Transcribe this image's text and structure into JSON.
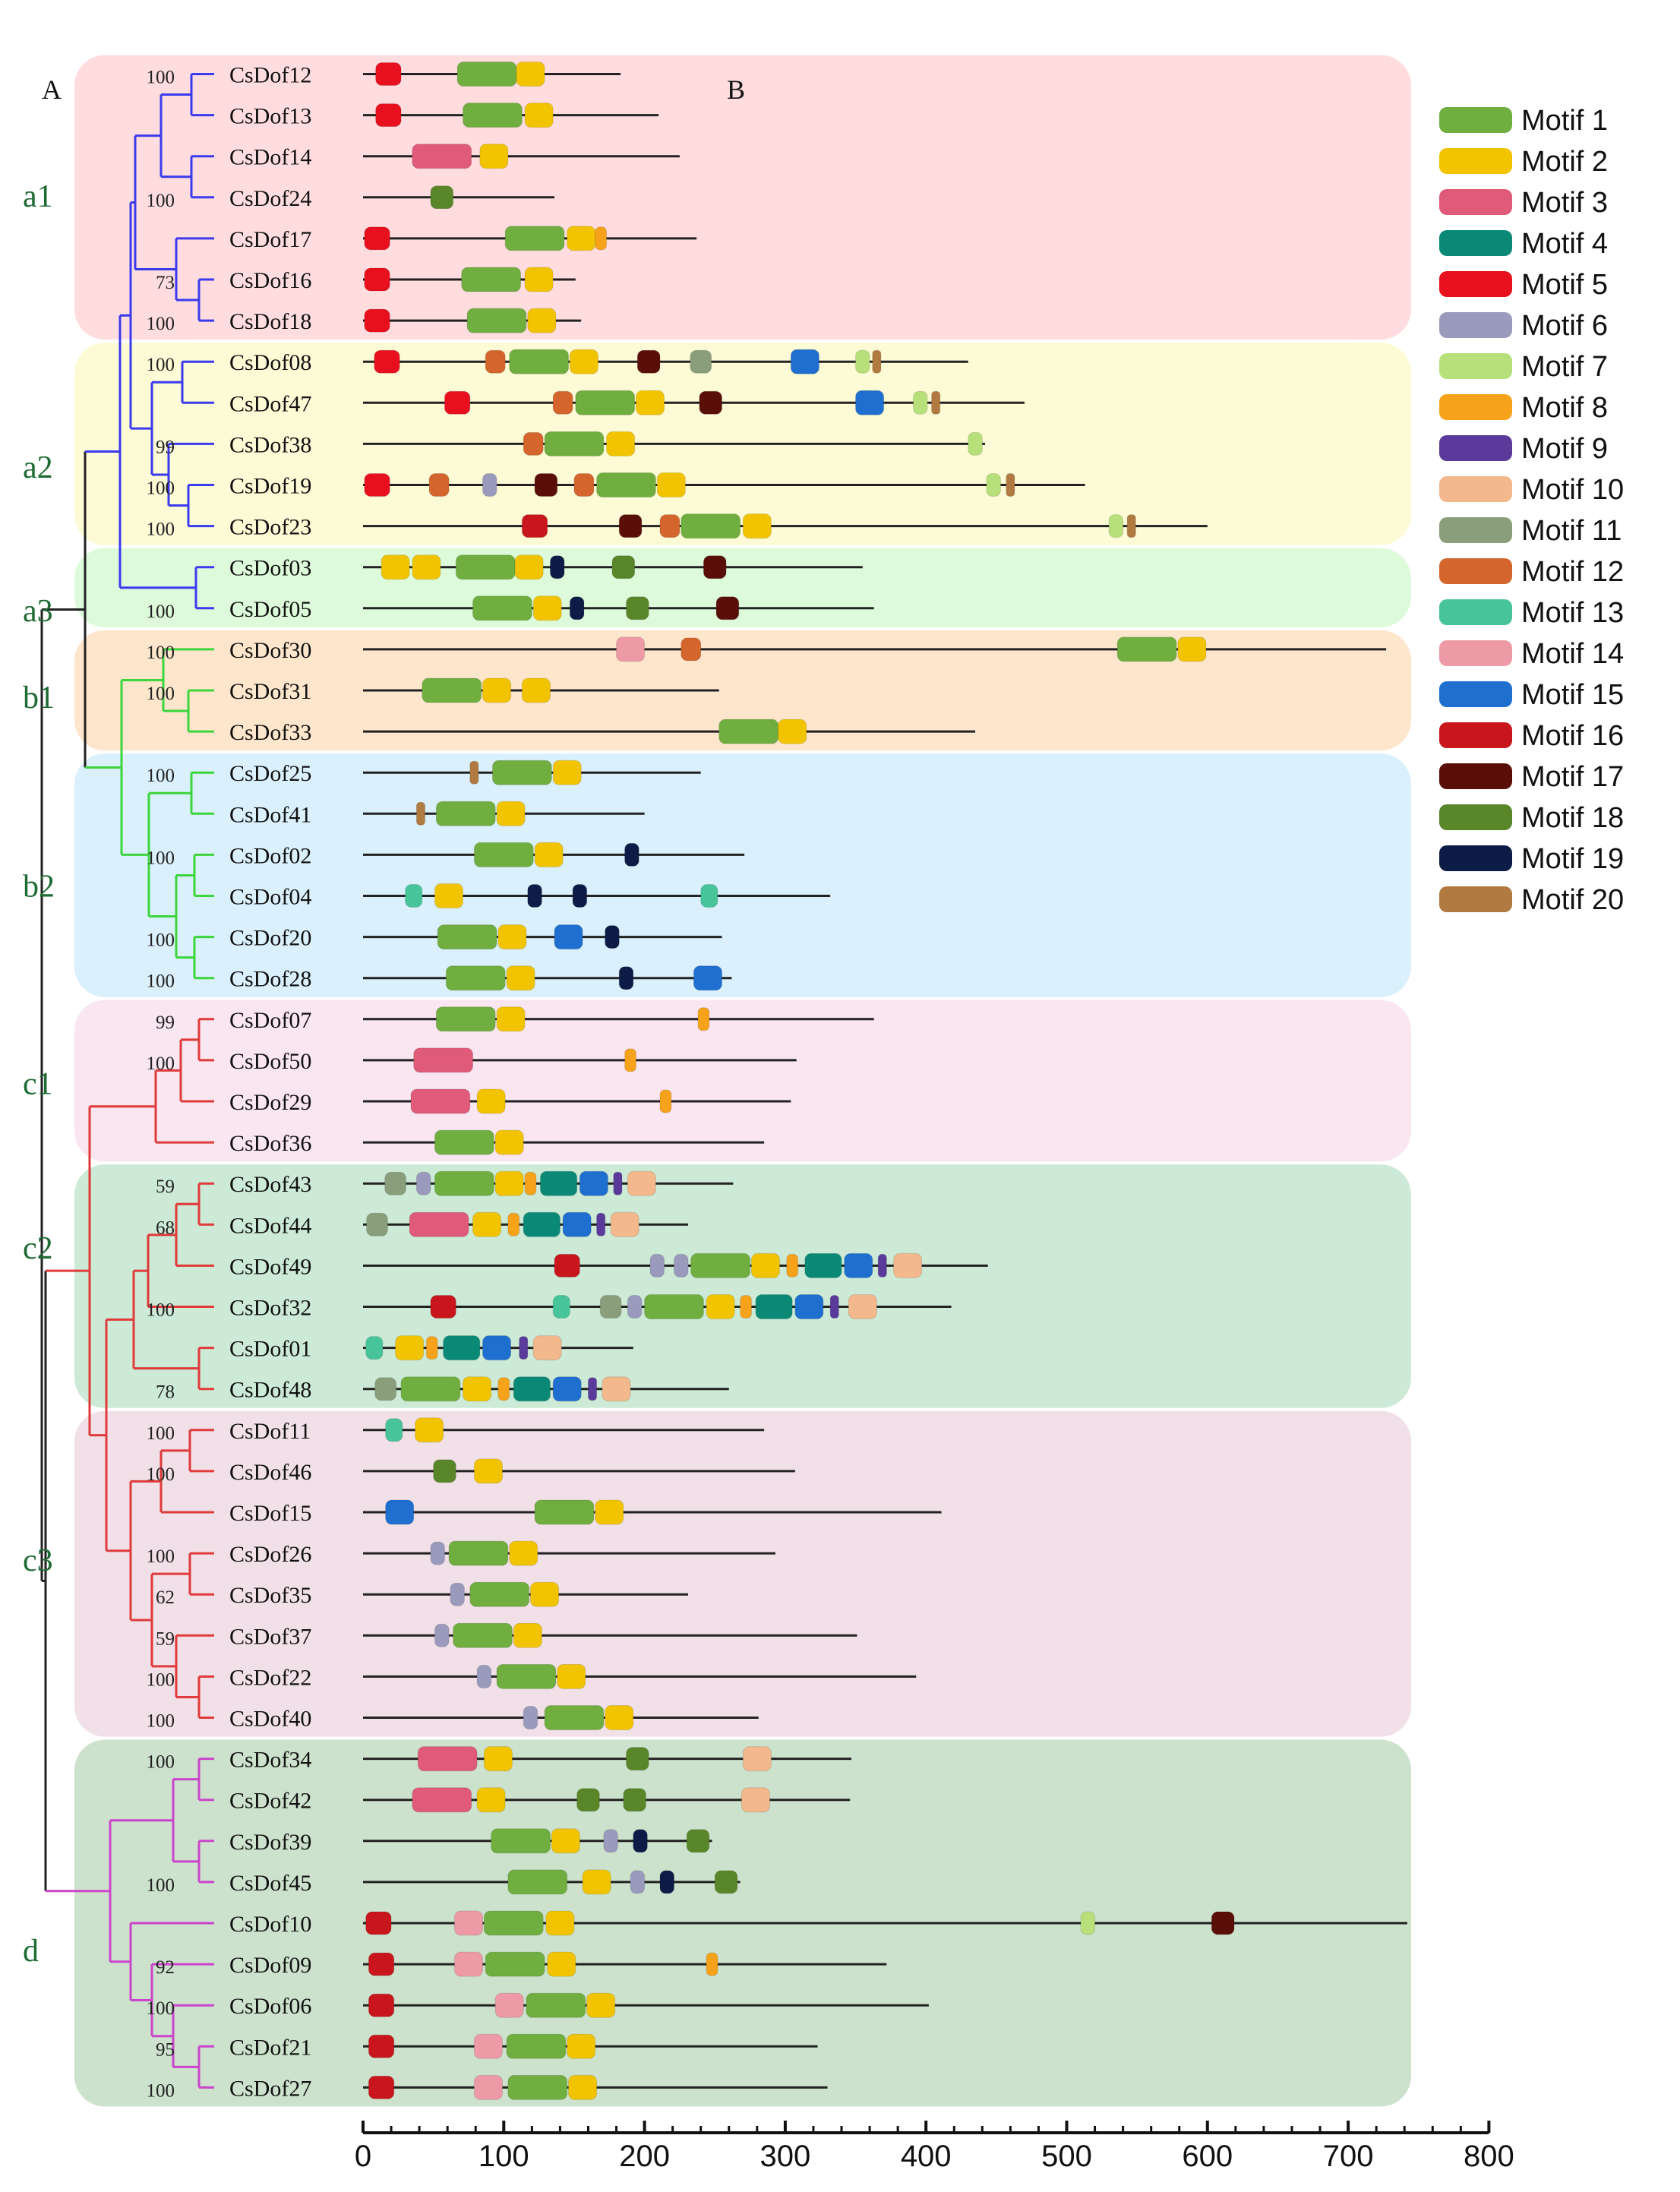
{
  "panel_labels": [
    "A",
    "B"
  ],
  "clades": [
    "a1",
    "a2",
    "a3",
    "b1",
    "b2",
    "c1",
    "c2",
    "c3",
    "d"
  ],
  "proteins": [
    {
      "name": "CsDof12",
      "length": 183,
      "boot": "100",
      "motifs": [
        [
          5,
          18
        ],
        [
          1,
          88
        ],
        [
          2,
          119
        ]
      ]
    },
    {
      "name": "CsDof13",
      "length": 210,
      "boot": "",
      "motifs": [
        [
          5,
          18
        ],
        [
          1,
          92
        ],
        [
          2,
          125
        ]
      ]
    },
    {
      "name": "CsDof14",
      "length": 225,
      "boot": "",
      "motifs": [
        [
          3,
          56
        ],
        [
          2,
          93
        ]
      ]
    },
    {
      "name": "CsDof24",
      "length": 136,
      "boot": "100",
      "motifs": [
        [
          18,
          56
        ]
      ]
    },
    {
      "name": "CsDof17",
      "length": 237,
      "boot": "",
      "motifs": [
        [
          5,
          10
        ],
        [
          1,
          122
        ],
        [
          2,
          155
        ],
        [
          8,
          169
        ]
      ]
    },
    {
      "name": "CsDof16",
      "length": 151,
      "boot": "73",
      "motifs": [
        [
          5,
          10
        ],
        [
          1,
          91
        ],
        [
          2,
          125
        ]
      ]
    },
    {
      "name": "CsDof18",
      "length": 155,
      "boot": "100",
      "motifs": [
        [
          5,
          10
        ],
        [
          1,
          95
        ],
        [
          2,
          127
        ]
      ]
    },
    {
      "name": "CsDof08",
      "length": 430,
      "boot": "100",
      "motifs": [
        [
          5,
          17
        ],
        [
          12,
          94
        ],
        [
          1,
          125
        ],
        [
          2,
          157
        ],
        [
          17,
          203
        ],
        [
          11,
          240
        ],
        [
          15,
          314
        ],
        [
          7,
          355
        ],
        [
          20,
          365
        ]
      ]
    },
    {
      "name": "CsDof47",
      "length": 470,
      "boot": "",
      "motifs": [
        [
          5,
          67
        ],
        [
          12,
          142
        ],
        [
          1,
          172
        ],
        [
          2,
          204
        ],
        [
          17,
          247
        ],
        [
          15,
          360
        ],
        [
          7,
          396
        ],
        [
          20,
          407
        ]
      ]
    },
    {
      "name": "CsDof38",
      "length": 442,
      "boot": "99",
      "motifs": [
        [
          12,
          121
        ],
        [
          1,
          150
        ],
        [
          2,
          183
        ],
        [
          7,
          435
        ]
      ]
    },
    {
      "name": "CsDof19",
      "length": 513,
      "boot": "100",
      "motifs": [
        [
          5,
          10
        ],
        [
          12,
          54
        ],
        [
          6,
          90
        ],
        [
          17,
          130
        ],
        [
          12,
          157
        ],
        [
          1,
          187
        ],
        [
          2,
          219
        ],
        [
          7,
          448
        ],
        [
          20,
          460
        ]
      ]
    },
    {
      "name": "CsDof23",
      "length": 600,
      "boot": "100",
      "motifs": [
        [
          16,
          122
        ],
        [
          17,
          190
        ],
        [
          12,
          218
        ],
        [
          1,
          247
        ],
        [
          2,
          280
        ],
        [
          7,
          535
        ],
        [
          20,
          546
        ]
      ]
    },
    {
      "name": "CsDof03",
      "length": 355,
      "boot": "",
      "motifs": [
        [
          2,
          23
        ],
        [
          2,
          45
        ],
        [
          1,
          87
        ],
        [
          2,
          118
        ],
        [
          19,
          138
        ],
        [
          18,
          185
        ],
        [
          17,
          250
        ]
      ]
    },
    {
      "name": "CsDof05",
      "length": 363,
      "boot": "100",
      "motifs": [
        [
          1,
          99
        ],
        [
          2,
          131
        ],
        [
          19,
          152
        ],
        [
          18,
          195
        ],
        [
          17,
          259
        ]
      ]
    },
    {
      "name": "CsDof30",
      "length": 727,
      "boot": "100",
      "motifs": [
        [
          14,
          190
        ],
        [
          12,
          233
        ],
        [
          1,
          557
        ],
        [
          2,
          589
        ]
      ]
    },
    {
      "name": "CsDof31",
      "length": 253,
      "boot": "100",
      "motifs": [
        [
          1,
          63
        ],
        [
          2,
          95
        ],
        [
          2,
          123
        ]
      ]
    },
    {
      "name": "CsDof33",
      "length": 435,
      "boot": "",
      "motifs": [
        [
          1,
          274
        ],
        [
          2,
          305
        ]
      ]
    },
    {
      "name": "CsDof25",
      "length": 240,
      "boot": "100",
      "motifs": [
        [
          20,
          79
        ],
        [
          1,
          113
        ],
        [
          2,
          145
        ]
      ]
    },
    {
      "name": "CsDof41",
      "length": 200,
      "boot": "",
      "motifs": [
        [
          20,
          41
        ],
        [
          1,
          73
        ],
        [
          2,
          105
        ]
      ]
    },
    {
      "name": "CsDof02",
      "length": 271,
      "boot": "100",
      "motifs": [
        [
          1,
          100
        ],
        [
          2,
          132
        ],
        [
          19,
          191
        ]
      ]
    },
    {
      "name": "CsDof04",
      "length": 332,
      "boot": "",
      "motifs": [
        [
          13,
          36
        ],
        [
          2,
          61
        ],
        [
          19,
          122
        ],
        [
          19,
          154
        ],
        [
          13,
          246
        ]
      ]
    },
    {
      "name": "CsDof20",
      "length": 255,
      "boot": "100",
      "motifs": [
        [
          1,
          74
        ],
        [
          2,
          106
        ],
        [
          15,
          146
        ],
        [
          19,
          177
        ]
      ]
    },
    {
      "name": "CsDof28",
      "length": 262,
      "boot": "100",
      "motifs": [
        [
          1,
          80
        ],
        [
          2,
          112
        ],
        [
          19,
          187
        ],
        [
          15,
          245
        ]
      ]
    },
    {
      "name": "CsDof07",
      "length": 363,
      "boot": "99",
      "motifs": [
        [
          1,
          73
        ],
        [
          2,
          105
        ],
        [
          8,
          242
        ]
      ]
    },
    {
      "name": "CsDof50",
      "length": 308,
      "boot": "100",
      "motifs": [
        [
          3,
          57
        ],
        [
          8,
          190
        ]
      ]
    },
    {
      "name": "CsDof29",
      "length": 304,
      "boot": "",
      "motifs": [
        [
          3,
          55
        ],
        [
          2,
          91
        ],
        [
          8,
          215
        ]
      ]
    },
    {
      "name": "CsDof36",
      "length": 285,
      "boot": "",
      "motifs": [
        [
          1,
          72
        ],
        [
          2,
          104
        ]
      ]
    },
    {
      "name": "CsDof43",
      "length": 263,
      "boot": "59",
      "motifs": [
        [
          11,
          23
        ],
        [
          6,
          43
        ],
        [
          1,
          72
        ],
        [
          2,
          104
        ],
        [
          8,
          119
        ],
        [
          4,
          139
        ],
        [
          15,
          164
        ],
        [
          9,
          181
        ],
        [
          10,
          198
        ]
      ]
    },
    {
      "name": "CsDof44",
      "length": 231,
      "boot": "68",
      "motifs": [
        [
          11,
          10
        ],
        [
          3,
          54
        ],
        [
          2,
          88
        ],
        [
          8,
          107
        ],
        [
          4,
          127
        ],
        [
          15,
          152
        ],
        [
          9,
          169
        ],
        [
          10,
          186
        ]
      ]
    },
    {
      "name": "CsDof49",
      "length": 444,
      "boot": "",
      "motifs": [
        [
          16,
          145
        ],
        [
          6,
          209
        ],
        [
          6,
          226
        ],
        [
          1,
          254
        ],
        [
          2,
          286
        ],
        [
          8,
          305
        ],
        [
          4,
          327
        ],
        [
          15,
          352
        ],
        [
          9,
          369
        ],
        [
          10,
          387
        ]
      ]
    },
    {
      "name": "CsDof32",
      "length": 418,
      "boot": "100",
      "motifs": [
        [
          16,
          57
        ],
        [
          13,
          141
        ],
        [
          11,
          176
        ],
        [
          6,
          193
        ],
        [
          1,
          221
        ],
        [
          2,
          254
        ],
        [
          8,
          272
        ],
        [
          4,
          292
        ],
        [
          15,
          317
        ],
        [
          9,
          335
        ],
        [
          10,
          355
        ]
      ]
    },
    {
      "name": "CsDof01",
      "length": 192,
      "boot": "",
      "motifs": [
        [
          13,
          8
        ],
        [
          2,
          33
        ],
        [
          8,
          49
        ],
        [
          4,
          70
        ],
        [
          15,
          95
        ],
        [
          9,
          114
        ],
        [
          10,
          131
        ]
      ]
    },
    {
      "name": "CsDof48",
      "length": 260,
      "boot": "78",
      "motifs": [
        [
          11,
          16
        ],
        [
          1,
          48
        ],
        [
          2,
          81
        ],
        [
          8,
          100
        ],
        [
          4,
          120
        ],
        [
          15,
          145
        ],
        [
          9,
          163
        ],
        [
          10,
          180
        ]
      ]
    },
    {
      "name": "CsDof11",
      "length": 285,
      "boot": "100",
      "motifs": [
        [
          13,
          22
        ],
        [
          2,
          47
        ]
      ]
    },
    {
      "name": "CsDof46",
      "length": 307,
      "boot": "100",
      "motifs": [
        [
          18,
          58
        ],
        [
          2,
          89
        ]
      ]
    },
    {
      "name": "CsDof15",
      "length": 411,
      "boot": "",
      "motifs": [
        [
          15,
          26
        ],
        [
          1,
          143
        ],
        [
          2,
          175
        ]
      ]
    },
    {
      "name": "CsDof26",
      "length": 293,
      "boot": "100",
      "motifs": [
        [
          6,
          53
        ],
        [
          1,
          82
        ],
        [
          2,
          114
        ]
      ]
    },
    {
      "name": "CsDof35",
      "length": 231,
      "boot": "62",
      "motifs": [
        [
          6,
          67
        ],
        [
          1,
          97
        ],
        [
          2,
          129
        ]
      ]
    },
    {
      "name": "CsDof37",
      "length": 351,
      "boot": "59",
      "motifs": [
        [
          6,
          56
        ],
        [
          1,
          85
        ],
        [
          2,
          117
        ]
      ]
    },
    {
      "name": "CsDof22",
      "length": 393,
      "boot": "100",
      "motifs": [
        [
          6,
          86
        ],
        [
          1,
          116
        ],
        [
          2,
          148
        ]
      ]
    },
    {
      "name": "CsDof40",
      "length": 281,
      "boot": "100",
      "motifs": [
        [
          6,
          119
        ],
        [
          1,
          150
        ],
        [
          2,
          182
        ]
      ]
    },
    {
      "name": "CsDof34",
      "length": 347,
      "boot": "100",
      "motifs": [
        [
          3,
          60
        ],
        [
          2,
          96
        ],
        [
          18,
          195
        ],
        [
          10,
          280
        ]
      ]
    },
    {
      "name": "CsDof42",
      "length": 346,
      "boot": "",
      "motifs": [
        [
          3,
          56
        ],
        [
          2,
          91
        ],
        [
          18,
          160
        ],
        [
          18,
          193
        ],
        [
          10,
          279
        ]
      ]
    },
    {
      "name": "CsDof39",
      "length": 248,
      "boot": "",
      "motifs": [
        [
          1,
          112
        ],
        [
          2,
          144
        ],
        [
          6,
          176
        ],
        [
          19,
          197
        ],
        [
          18,
          238
        ]
      ]
    },
    {
      "name": "CsDof45",
      "length": 268,
      "boot": "100",
      "motifs": [
        [
          1,
          124
        ],
        [
          2,
          166
        ],
        [
          6,
          195
        ],
        [
          19,
          216
        ],
        [
          18,
          258
        ]
      ]
    },
    {
      "name": "CsDof10",
      "length": 742,
      "boot": "",
      "motifs": [
        [
          16,
          11
        ],
        [
          14,
          75
        ],
        [
          1,
          107
        ],
        [
          2,
          140
        ],
        [
          7,
          515
        ],
        [
          17,
          611
        ]
      ]
    },
    {
      "name": "CsDof09",
      "length": 372,
      "boot": "92",
      "motifs": [
        [
          16,
          13
        ],
        [
          14,
          75
        ],
        [
          1,
          108
        ],
        [
          2,
          141
        ],
        [
          8,
          248
        ]
      ]
    },
    {
      "name": "CsDof06",
      "length": 402,
      "boot": "100",
      "motifs": [
        [
          16,
          13
        ],
        [
          14,
          104
        ],
        [
          1,
          137
        ],
        [
          2,
          169
        ]
      ]
    },
    {
      "name": "CsDof21",
      "length": 323,
      "boot": "95",
      "motifs": [
        [
          16,
          13
        ],
        [
          14,
          89
        ],
        [
          1,
          123
        ],
        [
          2,
          155
        ]
      ]
    },
    {
      "name": "CsDof27",
      "length": 330,
      "boot": "100",
      "motifs": [
        [
          16,
          13
        ],
        [
          14,
          89
        ],
        [
          1,
          124
        ],
        [
          2,
          156
        ]
      ]
    }
  ],
  "internal_bootstrap": [],
  "axis": {
    "min": 0,
    "max": 800,
    "step": 100,
    "ticks": [
      "0",
      "100",
      "200",
      "300",
      "400",
      "500",
      "600",
      "700",
      "800"
    ]
  },
  "legend": [
    {
      "motif": 1,
      "label": "Motif 1",
      "color": "#6fae3f"
    },
    {
      "motif": 2,
      "label": "Motif 2",
      "color": "#f2c400"
    },
    {
      "motif": 3,
      "label": "Motif 3",
      "color": "#e05a7a"
    },
    {
      "motif": 4,
      "label": "Motif 4",
      "color": "#0a8a76"
    },
    {
      "motif": 5,
      "label": "Motif 5",
      "color": "#e8101e"
    },
    {
      "motif": 6,
      "label": "Motif 6",
      "color": "#9a9abd"
    },
    {
      "motif": 7,
      "label": "Motif 7",
      "color": "#b7e07a"
    },
    {
      "motif": 8,
      "label": "Motif 8",
      "color": "#f7a21b"
    },
    {
      "motif": 9,
      "label": "Motif 9",
      "color": "#5a3a9a"
    },
    {
      "motif": 10,
      "label": "Motif 10",
      "color": "#f3b88c"
    },
    {
      "motif": 11,
      "label": "Motif 11",
      "color": "#8a9e7c"
    },
    {
      "motif": 12,
      "label": "Motif 12",
      "color": "#d4652c"
    },
    {
      "motif": 13,
      "label": "Motif 13",
      "color": "#48c49a"
    },
    {
      "motif": 14,
      "label": "Motif 14",
      "color": "#ee9aa6"
    },
    {
      "motif": 15,
      "label": "Motif 15",
      "color": "#1f6fd0"
    },
    {
      "motif": 16,
      "label": "Motif 16",
      "color": "#c8161c"
    },
    {
      "motif": 17,
      "label": "Motif 17",
      "color": "#5a0e08"
    },
    {
      "motif": 18,
      "label": "Motif 18",
      "color": "#5a862a"
    },
    {
      "motif": 19,
      "label": "Motif 19",
      "color": "#0c1c46"
    },
    {
      "motif": 20,
      "label": "Motif 20",
      "color": "#b07a40"
    }
  ],
  "tree_colors": {
    "a": "#3a3aee",
    "b": "#3cd63c",
    "c": "#e03a3a",
    "d": "#cc44cc",
    "root": "#222222"
  },
  "bands": [
    {
      "color": "#ffd9dc"
    },
    {
      "color": "#fdfbd2"
    },
    {
      "color": "#d9fbd6"
    },
    {
      "color": "#fde3c6"
    },
    {
      "color": "#d6eefc"
    },
    {
      "color": "#f8e3ee"
    },
    {
      "color": "#c6e8d2"
    },
    {
      "color": "#f0dde4"
    },
    {
      "color": "#c6dfc8"
    }
  ]
}
